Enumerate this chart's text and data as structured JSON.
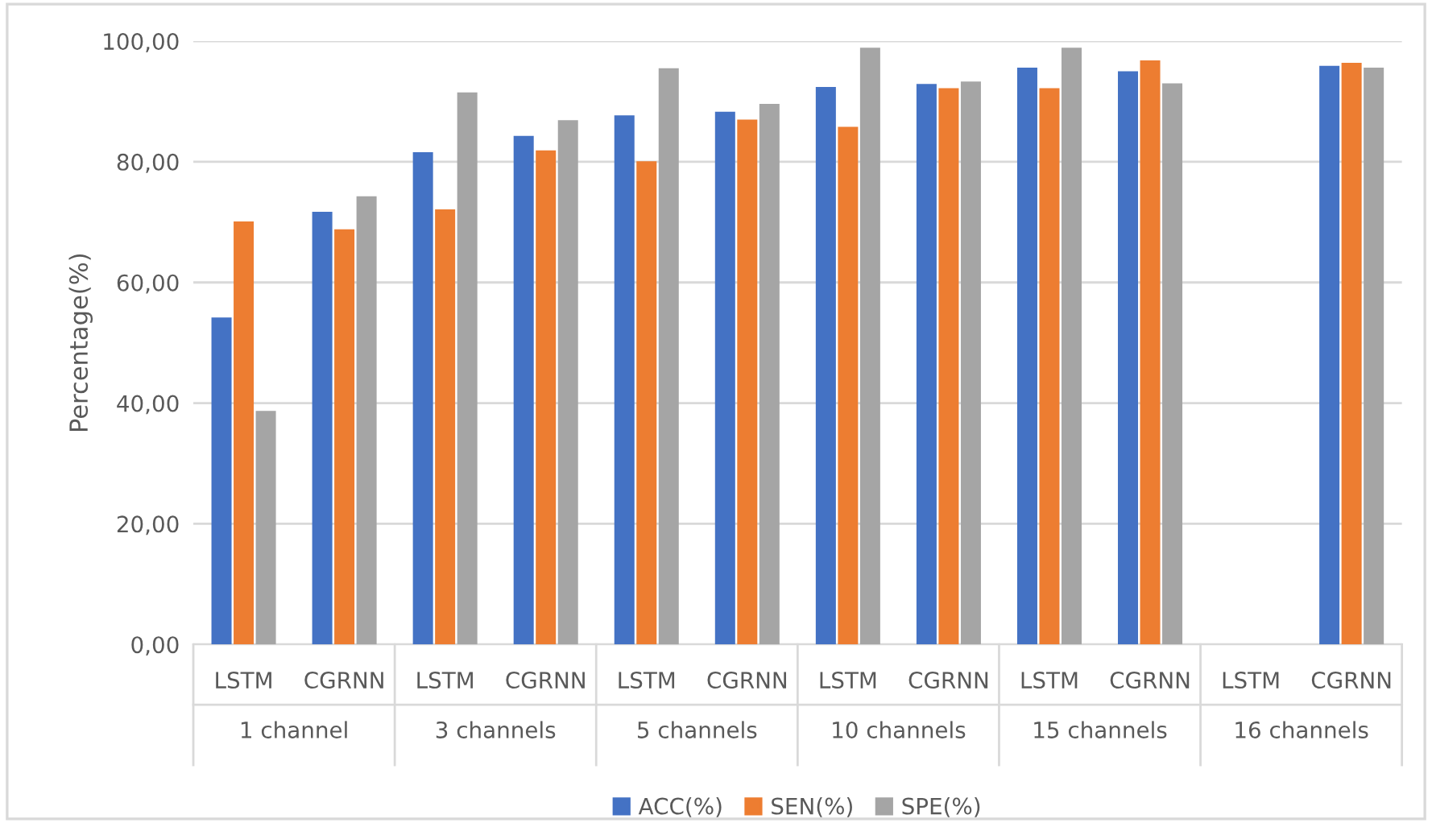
{
  "chart_data": {
    "type": "bar",
    "ylabel": "Percentage(%)",
    "categories": [
      "LSTM",
      "CGRNN",
      "LSTM",
      "CGRNN",
      "LSTM",
      "CGRNN",
      "LSTM",
      "CGRNN",
      "LSTM",
      "CGRNN",
      "LSTM",
      "CGRNN"
    ],
    "annotations": [
      "1 channel",
      "3 channels",
      "5 channels",
      "10 channels",
      "15 channels",
      "16 channels"
    ],
    "series": [
      {
        "name": "ACC(%)",
        "color": "#4472c4",
        "values": [
          54.2,
          71.7,
          81.6,
          84.3,
          87.7,
          88.3,
          92.4,
          92.9,
          95.6,
          95.0,
          null,
          95.9
        ]
      },
      {
        "name": "SEN(%)",
        "color": "#ed7d31",
        "values": [
          70.1,
          68.8,
          72.1,
          81.9,
          80.1,
          87.0,
          85.8,
          92.2,
          92.2,
          96.8,
          null,
          96.4
        ]
      },
      {
        "name": "SPE(%)",
        "color": "#a5a5a5",
        "values": [
          38.7,
          74.3,
          91.5,
          86.9,
          95.5,
          89.6,
          98.9,
          93.3,
          98.9,
          93.0,
          null,
          95.6
        ]
      }
    ],
    "ylim": [
      0,
      100
    ],
    "yticks": [
      {
        "value": 0,
        "label": "0,00"
      },
      {
        "value": 20,
        "label": "20,00"
      },
      {
        "value": 40,
        "label": "40,00"
      },
      {
        "value": 60,
        "label": "60,00"
      },
      {
        "value": 80,
        "label": "80,00"
      },
      {
        "value": 100,
        "label": "100,00"
      }
    ],
    "grid": "y",
    "legend": "bottom"
  }
}
